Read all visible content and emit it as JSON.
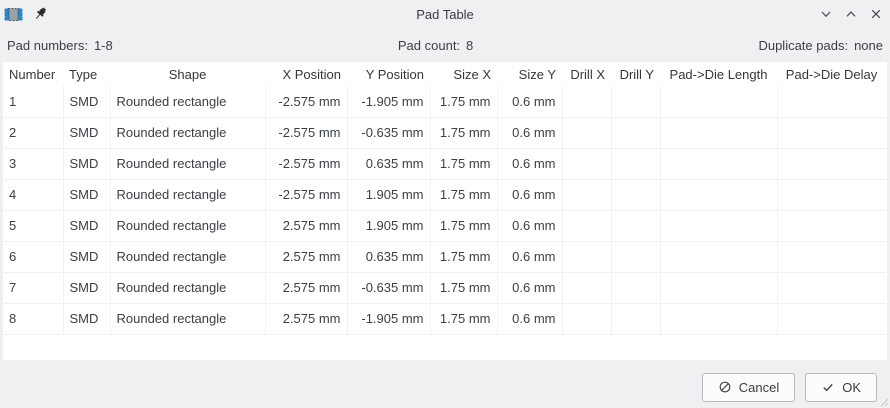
{
  "window": {
    "title": "Pad Table"
  },
  "summary": {
    "pad_numbers_label": "Pad numbers:",
    "pad_numbers_value": "1-8",
    "pad_count_label": "Pad count:",
    "pad_count_value": "8",
    "duplicate_pads_label": "Duplicate pads:",
    "duplicate_pads_value": "none"
  },
  "table": {
    "columns": [
      "Number",
      "Type",
      "Shape",
      "X Position",
      "Y Position",
      "Size X",
      "Size Y",
      "Drill X",
      "Drill Y",
      "Pad->Die Length",
      "Pad->Die Delay"
    ],
    "rows": [
      [
        "1",
        "SMD",
        "Rounded rectangle",
        "-2.575 mm",
        "-1.905 mm",
        "1.75 mm",
        "0.6 mm",
        "",
        "",
        "",
        ""
      ],
      [
        "2",
        "SMD",
        "Rounded rectangle",
        "-2.575 mm",
        "-0.635 mm",
        "1.75 mm",
        "0.6 mm",
        "",
        "",
        "",
        ""
      ],
      [
        "3",
        "SMD",
        "Rounded rectangle",
        "-2.575 mm",
        "0.635 mm",
        "1.75 mm",
        "0.6 mm",
        "",
        "",
        "",
        ""
      ],
      [
        "4",
        "SMD",
        "Rounded rectangle",
        "-2.575 mm",
        "1.905 mm",
        "1.75 mm",
        "0.6 mm",
        "",
        "",
        "",
        ""
      ],
      [
        "5",
        "SMD",
        "Rounded rectangle",
        "2.575 mm",
        "1.905 mm",
        "1.75 mm",
        "0.6 mm",
        "",
        "",
        "",
        ""
      ],
      [
        "6",
        "SMD",
        "Rounded rectangle",
        "2.575 mm",
        "0.635 mm",
        "1.75 mm",
        "0.6 mm",
        "",
        "",
        "",
        ""
      ],
      [
        "7",
        "SMD",
        "Rounded rectangle",
        "2.575 mm",
        "-0.635 mm",
        "1.75 mm",
        "0.6 mm",
        "",
        "",
        "",
        ""
      ],
      [
        "8",
        "SMD",
        "Rounded rectangle",
        "2.575 mm",
        "-1.905 mm",
        "1.75 mm",
        "0.6 mm",
        "",
        "",
        "",
        ""
      ]
    ]
  },
  "buttons": {
    "cancel": "Cancel",
    "ok": "OK"
  },
  "colors": {
    "background": "#eff0f1",
    "table_background": "#ffffff",
    "grid_line": "#f1f1f2",
    "text": "#3b4045",
    "pad_icon_blue": "#2f8fd0",
    "button_border": "#b8bbbd"
  }
}
